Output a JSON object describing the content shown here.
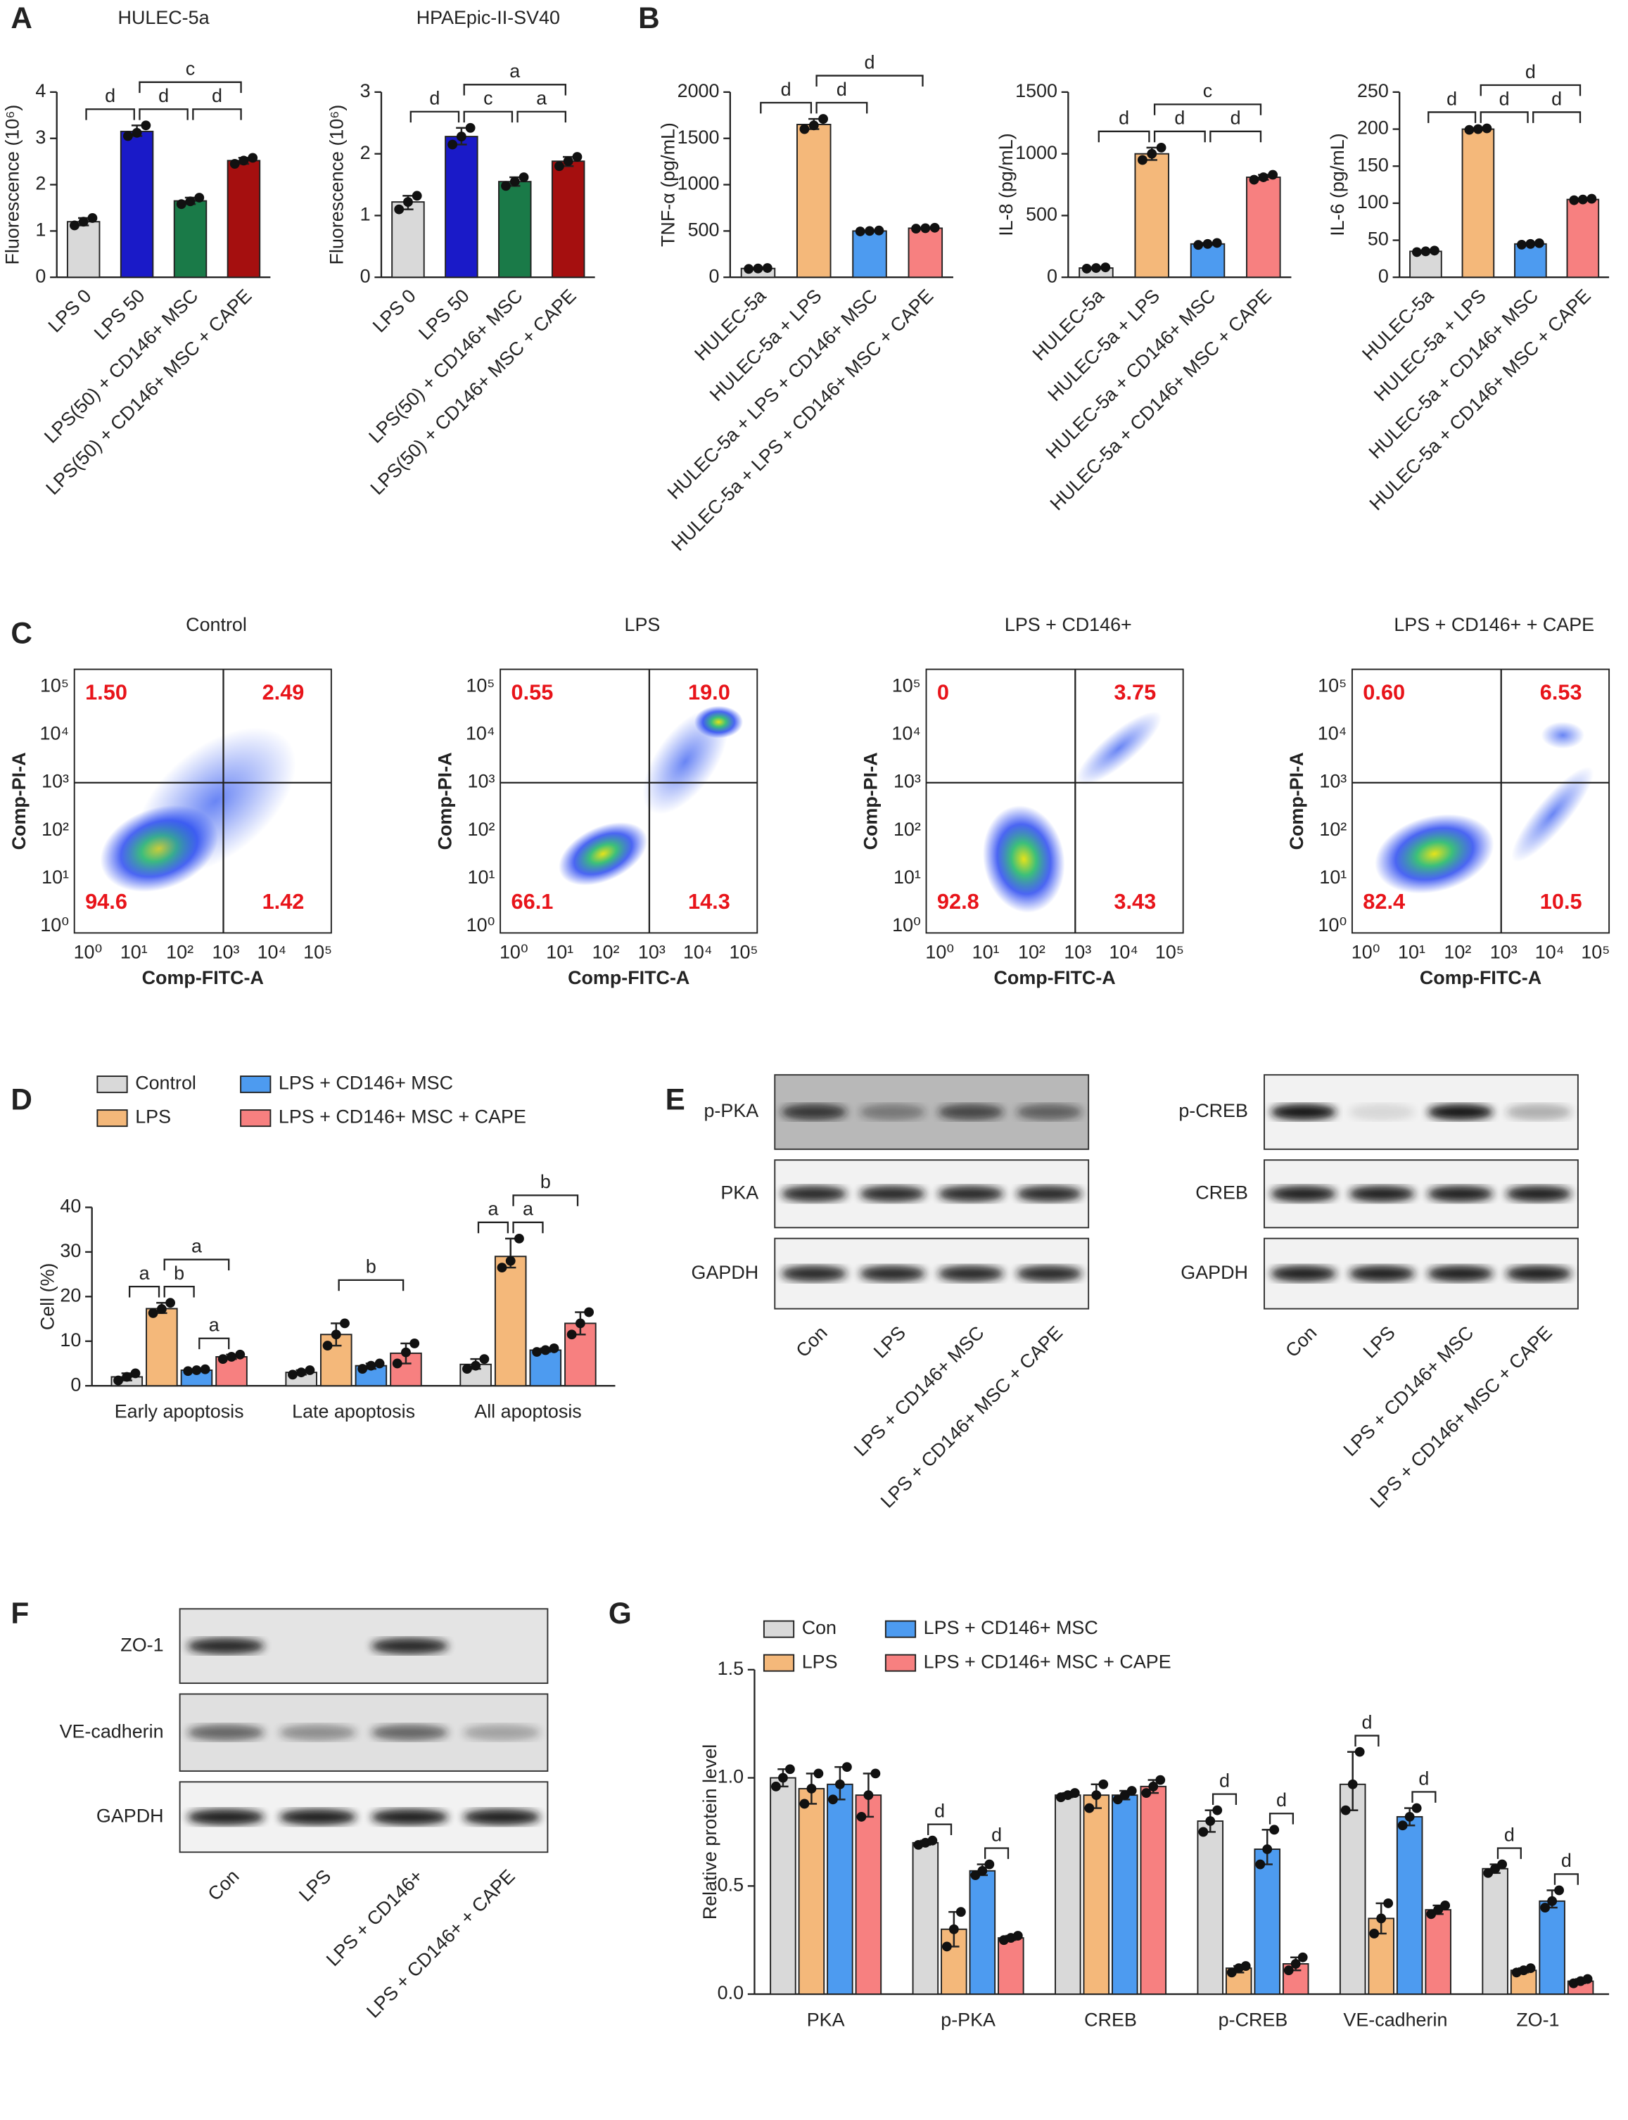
{
  "panels": [
    "A",
    "B",
    "C",
    "D",
    "E",
    "F",
    "G"
  ],
  "chart_data": [
    {
      "type": "bar",
      "title": "HULEC-5a",
      "ylabel": "Fluorescence (10⁶)",
      "categories": [
        "LPS 0",
        "LPS 50",
        "LPS(50) + CD146+ MSC",
        "LPS(50) + CD146+ MSC + CAPE"
      ],
      "values": [
        1.2,
        3.15,
        1.65,
        2.52
      ],
      "points": [
        [
          1.12,
          1.2,
          1.28
        ],
        [
          3.05,
          3.12,
          3.28
        ],
        [
          1.58,
          1.64,
          1.72
        ],
        [
          2.45,
          2.52,
          2.58
        ]
      ],
      "colors": [
        "#d9d9d9",
        "#1a1ac8",
        "#1a7a48",
        "#a50f0f"
      ],
      "ylim": [
        0,
        4
      ],
      "yticks": [
        0,
        1,
        2,
        3,
        4
      ],
      "significance": [
        {
          "from": 0,
          "to": 1,
          "label": "d"
        },
        {
          "from": 1,
          "to": 2,
          "label": "d"
        },
        {
          "from": 2,
          "to": 3,
          "label": "d"
        },
        {
          "from": 1,
          "to": 3,
          "label": "c"
        }
      ]
    },
    {
      "type": "bar",
      "title": "HPAEpic-II-SV40",
      "ylabel": "Fluorescence (10⁶)",
      "categories": [
        "LPS 0",
        "LPS 50",
        "LPS(50) + CD146+ MSC",
        "LPS(50) + CD146+ MSC + CAPE"
      ],
      "values": [
        1.22,
        2.28,
        1.55,
        1.88
      ],
      "points": [
        [
          1.1,
          1.22,
          1.32
        ],
        [
          2.15,
          2.28,
          2.42
        ],
        [
          1.48,
          1.55,
          1.62
        ],
        [
          1.8,
          1.88,
          1.95
        ]
      ],
      "colors": [
        "#d9d9d9",
        "#1a1ac8",
        "#1a7a48",
        "#a50f0f"
      ],
      "ylim": [
        0,
        3
      ],
      "yticks": [
        0,
        1,
        2,
        3
      ],
      "significance": [
        {
          "from": 0,
          "to": 1,
          "label": "d"
        },
        {
          "from": 1,
          "to": 2,
          "label": "c"
        },
        {
          "from": 2,
          "to": 3,
          "label": "a"
        },
        {
          "from": 1,
          "to": 3,
          "label": "a"
        }
      ]
    },
    {
      "type": "bar",
      "ylabel": "TNF-α (pg/mL)",
      "categories": [
        "HULEC-5a",
        "HULEC-5a + LPS",
        "HULEC-5a + LPS + CD146+ MSC",
        "HULEC-5a + LPS + CD146+ MSC + CAPE"
      ],
      "values": [
        95,
        1650,
        500,
        530
      ],
      "points": [
        [
          90,
          95,
          100
        ],
        [
          1600,
          1640,
          1710
        ],
        [
          495,
          500,
          505
        ],
        [
          525,
          530,
          535
        ]
      ],
      "colors": [
        "#d9d9d9",
        "#f4b87a",
        "#4d9bf0",
        "#f78080"
      ],
      "ylim": [
        0,
        2000
      ],
      "yticks": [
        0,
        500,
        1000,
        1500,
        2000
      ],
      "significance": [
        {
          "from": 0,
          "to": 1,
          "label": "d"
        },
        {
          "from": 1,
          "to": 2,
          "label": "d"
        },
        {
          "from": 1,
          "to": 3,
          "label": "d"
        }
      ]
    },
    {
      "type": "bar",
      "ylabel": "IL-8 (pg/mL)",
      "categories": [
        "HULEC-5a",
        "HULEC-5a + LPS",
        "HULEC-5a + CD146+ MSC",
        "HULEC-5a + CD146+ MSC + CAPE"
      ],
      "values": [
        75,
        1000,
        270,
        810
      ],
      "points": [
        [
          70,
          75,
          80
        ],
        [
          950,
          1000,
          1050
        ],
        [
          262,
          270,
          278
        ],
        [
          790,
          810,
          830
        ]
      ],
      "colors": [
        "#d9d9d9",
        "#f4b87a",
        "#4d9bf0",
        "#f78080"
      ],
      "ylim": [
        0,
        1500
      ],
      "yticks": [
        0,
        500,
        1000,
        1500
      ],
      "significance": [
        {
          "from": 0,
          "to": 1,
          "label": "d"
        },
        {
          "from": 1,
          "to": 2,
          "label": "d"
        },
        {
          "from": 2,
          "to": 3,
          "label": "d"
        },
        {
          "from": 1,
          "to": 3,
          "label": "c"
        }
      ]
    },
    {
      "type": "bar",
      "ylabel": "IL-6 (pg/mL)",
      "categories": [
        "HULEC-5a",
        "HULEC-5a + LPS",
        "HULEC-5a + CD146+ MSC",
        "HULEC-5a + CD146+ MSC + CAPE"
      ],
      "values": [
        35,
        200,
        45,
        105
      ],
      "points": [
        [
          34,
          35,
          36
        ],
        [
          199,
          200,
          201
        ],
        [
          44,
          45,
          46
        ],
        [
          104,
          105,
          106
        ]
      ],
      "colors": [
        "#d9d9d9",
        "#f4b87a",
        "#4d9bf0",
        "#f78080"
      ],
      "ylim": [
        0,
        250
      ],
      "yticks": [
        0,
        50,
        100,
        150,
        200,
        250
      ],
      "significance": [
        {
          "from": 0,
          "to": 1,
          "label": "d"
        },
        {
          "from": 1,
          "to": 2,
          "label": "d"
        },
        {
          "from": 2,
          "to": 3,
          "label": "d"
        },
        {
          "from": 1,
          "to": 3,
          "label": "d"
        }
      ]
    },
    {
      "type": "grouped-bar",
      "ylabel": "Cell (%)",
      "categories": [
        "Early apoptosis",
        "Late apoptosis",
        "All apoptosis"
      ],
      "ylim": [
        0,
        40
      ],
      "yticks": [
        0,
        10,
        20,
        30,
        40
      ],
      "series": [
        {
          "name": "Control",
          "color": "#d9d9d9",
          "values": [
            2,
            3,
            4.8
          ],
          "points": [
            [
              1.2,
              2,
              2.8
            ],
            [
              2.5,
              3,
              3.5
            ],
            [
              3.8,
              4.5,
              6
            ]
          ]
        },
        {
          "name": "LPS",
          "color": "#f4b87a",
          "values": [
            17.3,
            11.5,
            29
          ],
          "points": [
            [
              16.3,
              17.2,
              18.6
            ],
            [
              9,
              11.5,
              14
            ],
            [
              26.5,
              28,
              33
            ]
          ]
        },
        {
          "name": "LPS + CD146+ MSC",
          "color": "#4d9bf0",
          "values": [
            3.5,
            4.5,
            8
          ],
          "points": [
            [
              3.3,
              3.5,
              3.7
            ],
            [
              3.8,
              4.5,
              5
            ],
            [
              7.6,
              8,
              8.4
            ]
          ]
        },
        {
          "name": "LPS + CD146+ MSC + CAPE",
          "color": "#f78080",
          "values": [
            6.5,
            7.3,
            14
          ],
          "points": [
            [
              6,
              6.5,
              7
            ],
            [
              5,
              7.5,
              9.5
            ],
            [
              11.5,
              14,
              16.5
            ]
          ]
        }
      ],
      "significance": [
        {
          "category": 0,
          "from": 0,
          "to": 1,
          "label": "a"
        },
        {
          "category": 0,
          "from": 1,
          "to": 2,
          "label": "b"
        },
        {
          "category": 0,
          "from": 1,
          "to": 3,
          "label": "a"
        },
        {
          "category": 0,
          "from": 2,
          "to": 3,
          "label": "a"
        },
        {
          "category": 1,
          "from": 1,
          "to": 3,
          "label": "b"
        },
        {
          "category": 2,
          "from": 0,
          "to": 1,
          "label": "a"
        },
        {
          "category": 2,
          "from": 1,
          "to": 2,
          "label": "a"
        },
        {
          "category": 2,
          "from": 1,
          "to": 3,
          "label": "b"
        }
      ]
    },
    {
      "type": "grouped-bar",
      "ylabel": "Relative protein level",
      "categories": [
        "PKA",
        "p-PKA",
        "CREB",
        "p-CREB",
        "VE-cadherin",
        "ZO-1"
      ],
      "ylim": [
        0,
        1.5
      ],
      "yticks": [
        {
          "value": 0,
          "label": "0.0"
        },
        0.5,
        {
          "value": 1,
          "label": "1.0"
        },
        1.5
      ],
      "series": [
        {
          "name": "Con",
          "color": "#d9d9d9",
          "values": [
            1.0,
            0.7,
            0.92,
            0.8,
            0.97,
            0.58
          ],
          "points": [
            [
              0.96,
              1.0,
              1.04
            ],
            [
              0.69,
              0.7,
              0.71
            ],
            [
              0.91,
              0.92,
              0.93
            ],
            [
              0.75,
              0.8,
              0.85
            ],
            [
              0.85,
              0.97,
              1.12
            ],
            [
              0.56,
              0.58,
              0.6
            ]
          ]
        },
        {
          "name": "LPS",
          "color": "#f4b87a",
          "values": [
            0.95,
            0.3,
            0.92,
            0.12,
            0.35,
            0.11
          ],
          "points": [
            [
              0.88,
              0.95,
              1.02
            ],
            [
              0.22,
              0.3,
              0.38
            ],
            [
              0.86,
              0.92,
              0.97
            ],
            [
              0.1,
              0.12,
              0.13
            ],
            [
              0.28,
              0.35,
              0.42
            ],
            [
              0.1,
              0.11,
              0.12
            ]
          ]
        },
        {
          "name": "LPS + CD146+ MSC",
          "color": "#4d9bf0",
          "values": [
            0.97,
            0.57,
            0.92,
            0.67,
            0.82,
            0.43
          ],
          "points": [
            [
              0.9,
              0.97,
              1.05
            ],
            [
              0.55,
              0.57,
              0.6
            ],
            [
              0.9,
              0.92,
              0.94
            ],
            [
              0.6,
              0.67,
              0.76
            ],
            [
              0.78,
              0.82,
              0.86
            ],
            [
              0.4,
              0.43,
              0.48
            ]
          ]
        },
        {
          "name": "LPS + CD146+ MSC + CAPE",
          "color": "#f78080",
          "values": [
            0.92,
            0.26,
            0.96,
            0.14,
            0.39,
            0.06
          ],
          "points": [
            [
              0.82,
              0.92,
              1.02
            ],
            [
              0.25,
              0.26,
              0.27
            ],
            [
              0.93,
              0.96,
              0.99
            ],
            [
              0.11,
              0.14,
              0.17
            ],
            [
              0.37,
              0.39,
              0.41
            ],
            [
              0.05,
              0.06,
              0.07
            ]
          ]
        }
      ],
      "significance": [
        {
          "category": 1,
          "from": 0,
          "to": 1,
          "label": "d"
        },
        {
          "category": 1,
          "from": 2,
          "to": 3,
          "label": "d"
        },
        {
          "category": 3,
          "from": 0,
          "to": 1,
          "label": "d"
        },
        {
          "category": 3,
          "from": 2,
          "to": 3,
          "label": "d"
        },
        {
          "category": 4,
          "from": 0,
          "to": 1,
          "label": "d"
        },
        {
          "category": 4,
          "from": 2,
          "to": 3,
          "label": "d"
        },
        {
          "category": 5,
          "from": 0,
          "to": 1,
          "label": "d"
        },
        {
          "category": 5,
          "from": 2,
          "to": 3,
          "label": "d"
        }
      ]
    }
  ],
  "flow": {
    "xlabel": "Comp-FITC-A",
    "ylabel": "Comp-PI-A",
    "ticks": [
      "10⁰",
      "10¹",
      "10²",
      "10³",
      "10⁴",
      "10⁵"
    ],
    "plots": [
      {
        "title": "Control",
        "quadrants": [
          "1.50",
          "2.49",
          "94.6",
          "1.42"
        ]
      },
      {
        "title": "LPS",
        "quadrants": [
          "0.55",
          "19.0",
          "66.1",
          "14.3"
        ]
      },
      {
        "title": "LPS + CD146+",
        "quadrants": [
          "0",
          "3.75",
          "92.8",
          "3.43"
        ]
      },
      {
        "title": "LPS + CD146+ + CAPE",
        "quadrants": [
          "0.60",
          "6.53",
          "82.4",
          "10.5"
        ]
      }
    ]
  },
  "blots": [
    {
      "rows": [
        "p-PKA",
        "PKA",
        "GAPDH"
      ],
      "lanes": [
        "Con",
        "LPS",
        "LPS + CD146+ MSC",
        "LPS + CD146+ MSC + CAPE"
      ]
    },
    {
      "rows": [
        "p-CREB",
        "CREB",
        "GAPDH"
      ],
      "lanes": [
        "Con",
        "LPS",
        "LPS + CD146+ MSC",
        "LPS + CD146+ MSC + CAPE"
      ]
    },
    {
      "rows": [
        "ZO-1",
        "VE-cadherin",
        "GAPDH"
      ],
      "lanes": [
        "Con",
        "LPS",
        "LPS + CD146+",
        "LPS + CD146+ + CAPE"
      ]
    }
  ]
}
